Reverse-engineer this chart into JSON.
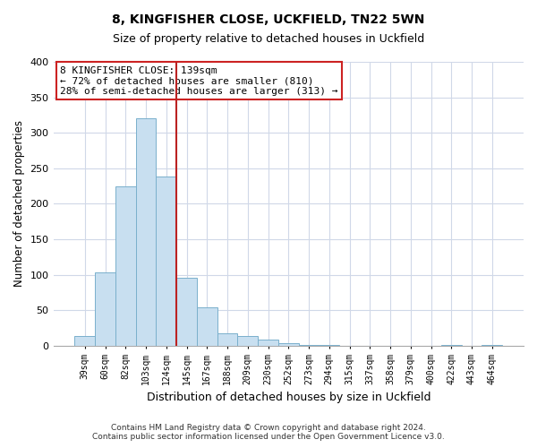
{
  "title": "8, KINGFISHER CLOSE, UCKFIELD, TN22 5WN",
  "subtitle": "Size of property relative to detached houses in Uckfield",
  "xlabel": "Distribution of detached houses by size in Uckfield",
  "ylabel": "Number of detached properties",
  "bar_labels": [
    "39sqm",
    "60sqm",
    "82sqm",
    "103sqm",
    "124sqm",
    "145sqm",
    "167sqm",
    "188sqm",
    "209sqm",
    "230sqm",
    "252sqm",
    "273sqm",
    "294sqm",
    "315sqm",
    "337sqm",
    "358sqm",
    "379sqm",
    "400sqm",
    "422sqm",
    "443sqm",
    "464sqm"
  ],
  "bar_values": [
    14,
    103,
    225,
    320,
    238,
    96,
    54,
    17,
    14,
    9,
    4,
    1,
    1,
    0,
    0,
    0,
    0,
    0,
    1,
    0,
    1
  ],
  "bar_color": "#c8dff0",
  "bar_edge_color": "#7ab0cc",
  "vline_color": "#bb2222",
  "vline_x_index": 4.5,
  "ylim": [
    0,
    400
  ],
  "yticks": [
    0,
    50,
    100,
    150,
    200,
    250,
    300,
    350,
    400
  ],
  "annotation_box_title": "8 KINGFISHER CLOSE: 139sqm",
  "annotation_line1": "← 72% of detached houses are smaller (810)",
  "annotation_line2": "28% of semi-detached houses are larger (313) →",
  "annotation_box_color": "#ffffff",
  "annotation_box_edge": "#cc2222",
  "footer_line1": "Contains HM Land Registry data © Crown copyright and database right 2024.",
  "footer_line2": "Contains public sector information licensed under the Open Government Licence v3.0.",
  "background_color": "#ffffff",
  "plot_bg_color": "#ffffff",
  "grid_color": "#d0d8e8"
}
